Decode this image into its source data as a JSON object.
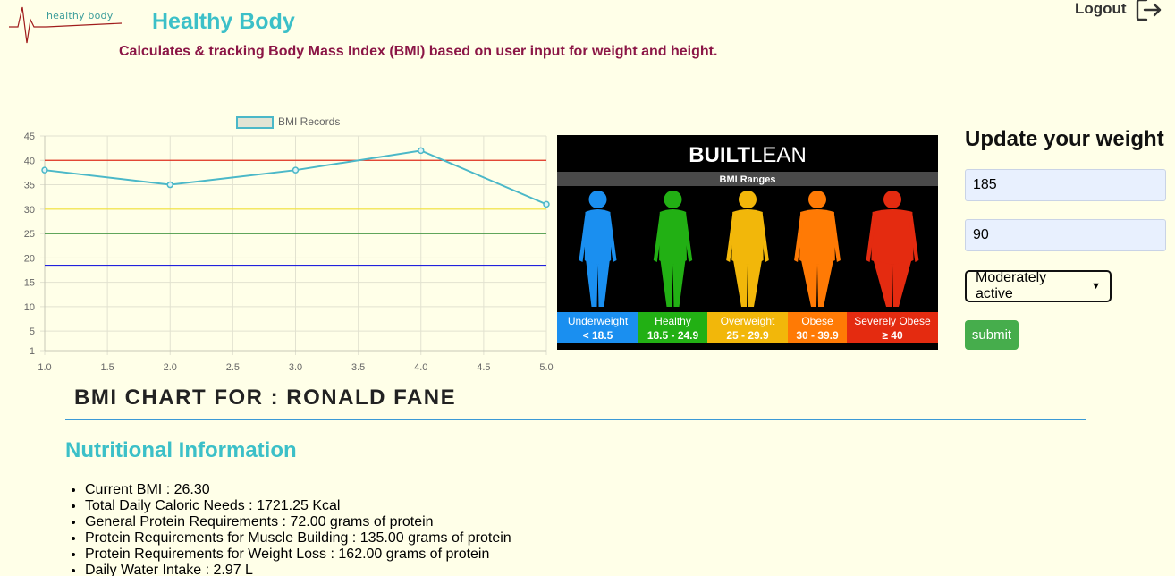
{
  "header": {
    "logo_text": "healthy body",
    "app_title": "Healthy Body",
    "tagline": "Calculates & tracking Body Mass Index (BMI) based on user input for weight and height.",
    "logout_label": "Logout"
  },
  "chart_data": {
    "type": "line",
    "series": [
      {
        "name": "BMI Records",
        "color": "#4bb8c8",
        "x": [
          1,
          2,
          3,
          4,
          5
        ],
        "values": [
          38,
          35,
          38,
          42,
          31
        ]
      }
    ],
    "reference_lines": [
      {
        "value": 40,
        "color": "#e0301e"
      },
      {
        "value": 30,
        "color": "#f2e23a"
      },
      {
        "value": 25,
        "color": "#2e8b2e"
      },
      {
        "value": 18.5,
        "color": "#2222dd"
      }
    ],
    "x_ticks": [
      "1.0",
      "1.5",
      "2.0",
      "2.5",
      "3.0",
      "3.5",
      "4.0",
      "4.5",
      "5.0"
    ],
    "y_ticks": [
      "45",
      "40",
      "35",
      "30",
      "25",
      "20",
      "15",
      "10",
      "5",
      "1"
    ],
    "xlim": [
      1,
      5
    ],
    "ylim": [
      1,
      45
    ],
    "grid": true,
    "legend_position": "top-center"
  },
  "bmi_ranges_image": {
    "brand_bold": "BUILT",
    "brand_light": "LEAN",
    "heading": "BMI Ranges",
    "ranges": [
      {
        "label": "Underweight",
        "range": "< 18.5",
        "color": "#1a8ff0"
      },
      {
        "label": "Healthy",
        "range": "18.5 - 24.9",
        "color": "#22b014"
      },
      {
        "label": "Overweight",
        "range": "25 - 29.9",
        "color": "#f2b70a"
      },
      {
        "label": "Obese",
        "range": "30 - 39.9",
        "color": "#ff7a05"
      },
      {
        "label": "Severely Obese",
        "range": "≥ 40",
        "color": "#e42b10"
      }
    ]
  },
  "form": {
    "title": "Update your weight",
    "weight_value": "185",
    "height_value": "90",
    "activity_selected": "Moderately active",
    "submit_label": "submit"
  },
  "bmi_chart_title": "BMI CHART FOR : RONALD FANE",
  "nutrition": {
    "title": "Nutritional Information",
    "items": [
      "Current BMI : 26.30",
      "Total Daily Caloric Needs : 1721.25 Kcal",
      "General Protein Requirements : 72.00 grams of protein",
      "Protein Requirements for Muscle Building : 135.00 grams of protein",
      "Protein Requirements for Weight Loss : 162.00 grams of protein",
      "Daily Water Intake : 2.97 L"
    ]
  }
}
